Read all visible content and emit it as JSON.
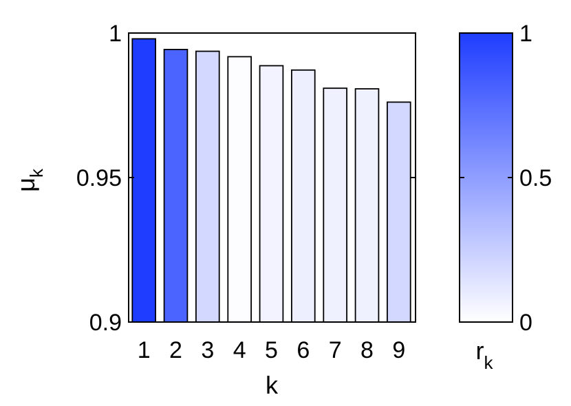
{
  "chart_data": {
    "type": "bar",
    "categories": [
      "1",
      "2",
      "3",
      "4",
      "5",
      "6",
      "7",
      "8",
      "9"
    ],
    "values": [
      0.998,
      0.9943,
      0.9937,
      0.9918,
      0.9887,
      0.9872,
      0.9809,
      0.9807,
      0.9761
    ],
    "color_values": [
      1.0,
      0.8,
      0.2,
      0.01,
      0.06,
      0.08,
      0.07,
      0.07,
      0.2
    ],
    "xlabel": "k",
    "ylabel_main": "μ",
    "ylabel_sub": "k",
    "ylim": [
      0.9,
      1.0
    ],
    "yticks": [
      "0.9",
      "0.95",
      "1"
    ],
    "ytick_values": [
      0.9,
      0.95,
      1.0
    ],
    "colorbar": {
      "label_main": "r",
      "label_sub": "k",
      "range": [
        0,
        1
      ],
      "ticks": [
        "0",
        "0.5",
        "1"
      ],
      "tick_values": [
        0,
        0.5,
        1
      ],
      "color_min": "#ffffff",
      "color_max": "#1f3dff"
    },
    "grid": false
  }
}
